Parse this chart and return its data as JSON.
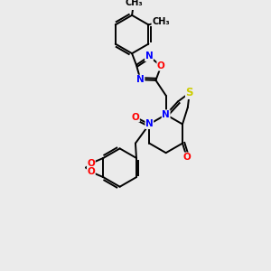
{
  "bg_color": "#ebebeb",
  "atom_colors": {
    "N": "#0000ff",
    "O": "#ff0000",
    "S": "#cccc00"
  },
  "bond_color": "#000000",
  "lw": 1.4,
  "fs": 7.5
}
